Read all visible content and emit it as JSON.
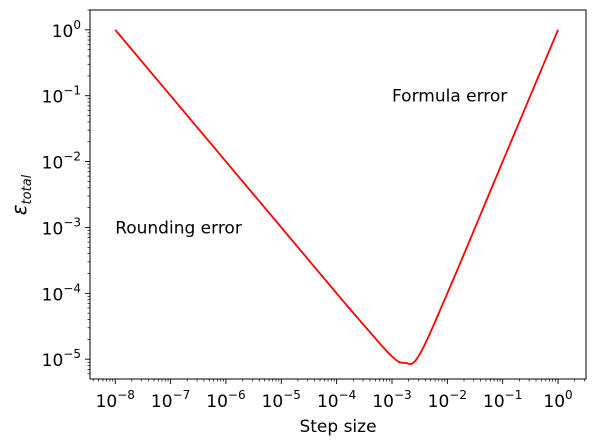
{
  "chart_data": {
    "type": "line",
    "title": "",
    "xlabel": "Step size",
    "ylabel": {
      "main": "ε",
      "subscript": "total"
    },
    "xscale": "log",
    "yscale": "log",
    "xlim": [
      3.5e-09,
      3.2
    ],
    "ylim": [
      5e-06,
      2.0
    ],
    "grid": false,
    "legend": "none",
    "x_ticks": [
      {
        "base": "10",
        "exp": "−8",
        "value": 1e-08
      },
      {
        "base": "10",
        "exp": "−7",
        "value": 1e-07
      },
      {
        "base": "10",
        "exp": "−6",
        "value": 1e-06
      },
      {
        "base": "10",
        "exp": "−5",
        "value": 1e-05
      },
      {
        "base": "10",
        "exp": "−4",
        "value": 0.0001
      },
      {
        "base": "10",
        "exp": "−3",
        "value": 0.001
      },
      {
        "base": "10",
        "exp": "−2",
        "value": 0.01
      },
      {
        "base": "10",
        "exp": "−1",
        "value": 0.1
      },
      {
        "base": "10",
        "exp": "0",
        "value": 1
      }
    ],
    "y_ticks": [
      {
        "base": "10",
        "exp": "−5",
        "value": 1e-05
      },
      {
        "base": "10",
        "exp": "−4",
        "value": 0.0001
      },
      {
        "base": "10",
        "exp": "−3",
        "value": 0.001
      },
      {
        "base": "10",
        "exp": "−2",
        "value": 0.01
      },
      {
        "base": "10",
        "exp": "−1",
        "value": 0.1
      },
      {
        "base": "10",
        "exp": "0",
        "value": 1
      }
    ],
    "series": [
      {
        "color": "#ff0000",
        "x": [
          1e-08,
          1e-07,
          1e-06,
          1e-05,
          0.0001,
          0.0003,
          0.001,
          0.0017,
          0.003,
          0.01,
          0.1,
          1
        ],
        "y": [
          1,
          0.1,
          0.01,
          0.001,
          0.0001,
          3.4e-05,
          1.1e-05,
          8.8e-06,
          1.1e-05,
          0.0001,
          0.01,
          1
        ]
      }
    ],
    "annotations": [
      {
        "text": "Formula error",
        "x": 0.001,
        "y": 0.1
      },
      {
        "text": "Rounding error",
        "x": 1e-08,
        "y": 0.001
      }
    ]
  }
}
